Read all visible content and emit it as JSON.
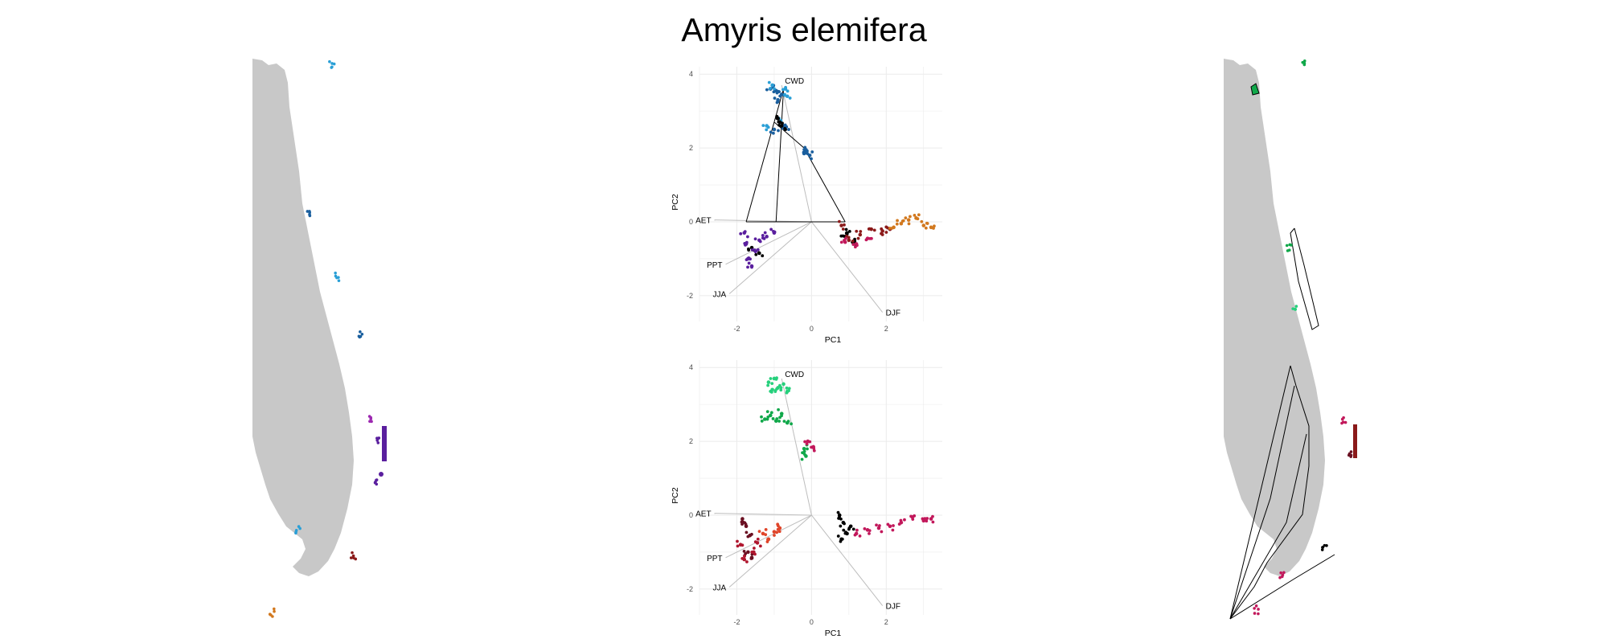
{
  "figure_title": "Amyris elemifera",
  "colors": {
    "land": "#c8c8c8",
    "grid": "#ebebeb",
    "vector": "#bdbdbd",
    "hull": "#000000"
  },
  "chart_data": [
    {
      "type": "scatter",
      "title": "",
      "xlabel": "PC1",
      "ylabel": "PC2",
      "xlim": [
        -3.0,
        3.5
      ],
      "ylim": [
        -2.7,
        4.2
      ],
      "xticks": [
        -2,
        0,
        2
      ],
      "yticks": [
        -2,
        0,
        2,
        4
      ],
      "xtick_labels": [
        "-2",
        "0",
        "2"
      ],
      "ytick_labels": [
        "-2",
        "0",
        "2",
        "4"
      ],
      "grid": true,
      "legend": "none",
      "vectors": [
        {
          "label": "CWD",
          "x": -0.8,
          "y": 3.7
        },
        {
          "label": "AET",
          "x": -2.6,
          "y": 0.05
        },
        {
          "label": "PPT",
          "x": -2.3,
          "y": -1.15
        },
        {
          "label": "JJA",
          "x": -2.2,
          "y": -1.95
        },
        {
          "label": "DJF",
          "x": 1.9,
          "y": -2.45
        }
      ],
      "hull_edges": [
        [
          -1.75,
          0.0
        ],
        [
          -1.0,
          2.7
        ],
        [
          -0.95,
          0.0
        ],
        [
          -0.75,
          3.6
        ],
        [
          -0.2,
          2.0
        ],
        [
          0.9,
          0.0
        ]
      ],
      "series": [
        {
          "color": "#1a5f9e",
          "x": [
            -1.1,
            -0.95,
            -0.9,
            -0.8,
            -0.75,
            -1.0,
            -0.7,
            -0.15,
            -0.05,
            -0.2
          ],
          "y": [
            3.6,
            3.55,
            3.3,
            3.45,
            2.6,
            2.5,
            2.55,
            1.95,
            1.8,
            1.85
          ]
        },
        {
          "color": "#2a9fd6",
          "x": [
            -1.05,
            -0.7,
            -0.65,
            -1.2,
            -0.85
          ],
          "y": [
            3.7,
            3.6,
            3.4,
            2.6,
            2.7
          ]
        },
        {
          "color": "#000000",
          "x": [
            -0.9,
            -0.85,
            -0.8,
            -1.6,
            -1.4,
            0.9,
            1.1,
            0.95
          ],
          "y": [
            2.8,
            2.7,
            2.6,
            -0.7,
            -0.85,
            -0.4,
            -0.55,
            -0.3
          ]
        },
        {
          "color": "#5a1f9e",
          "x": [
            -1.8,
            -1.75,
            -1.7,
            -1.6,
            -1.5,
            -1.4,
            -1.2,
            -1.0
          ],
          "y": [
            -0.3,
            -0.6,
            -1.0,
            -1.2,
            -0.8,
            -0.5,
            -0.4,
            -0.3
          ]
        },
        {
          "color": "#8b1a1a",
          "x": [
            0.8,
            1.0,
            1.3,
            1.6,
            1.9,
            2.1
          ],
          "y": [
            -0.1,
            -0.5,
            -0.35,
            -0.2,
            -0.25,
            -0.2
          ]
        },
        {
          "color": "#c2185b",
          "x": [
            0.9,
            1.2,
            1.5
          ],
          "y": [
            -0.55,
            -0.6,
            -0.45
          ]
        },
        {
          "color": "#d2781e",
          "x": [
            2.2,
            2.4,
            2.6,
            2.8,
            3.0,
            3.2
          ],
          "y": [
            -0.15,
            -0.05,
            0.05,
            0.1,
            -0.1,
            -0.15
          ]
        }
      ]
    },
    {
      "type": "scatter",
      "title": "",
      "xlabel": "PC1",
      "ylabel": "PC2",
      "xlim": [
        -3.0,
        3.5
      ],
      "ylim": [
        -2.7,
        4.2
      ],
      "xticks": [
        -2,
        0,
        2
      ],
      "yticks": [
        -2,
        0,
        2,
        4
      ],
      "xtick_labels": [
        "-2",
        "0",
        "2"
      ],
      "ytick_labels": [
        "-2",
        "0",
        "2",
        "4"
      ],
      "grid": true,
      "legend": "none",
      "vectors": [
        {
          "label": "CWD",
          "x": -0.8,
          "y": 3.7
        },
        {
          "label": "AET",
          "x": -2.6,
          "y": 0.05
        },
        {
          "label": "PPT",
          "x": -2.3,
          "y": -1.15
        },
        {
          "label": "JJA",
          "x": -2.2,
          "y": -1.95
        },
        {
          "label": "DJF",
          "x": 1.9,
          "y": -2.45
        }
      ],
      "series": [
        {
          "color": "#26d07c",
          "x": [
            -1.15,
            -1.0,
            -0.9,
            -0.75,
            -0.65,
            -1.05
          ],
          "y": [
            3.6,
            3.7,
            3.45,
            3.55,
            3.35,
            3.4
          ]
        },
        {
          "color": "#10a84a",
          "x": [
            -1.25,
            -1.1,
            -0.95,
            -0.8,
            -0.65,
            -0.2,
            -0.15
          ],
          "y": [
            2.6,
            2.7,
            2.55,
            2.75,
            2.5,
            1.8,
            1.6
          ]
        },
        {
          "color": "#c2185b",
          "x": [
            -0.1,
            0.05,
            1.2,
            1.5,
            1.8,
            2.1,
            2.4,
            2.7,
            3.0,
            3.2
          ],
          "y": [
            2.0,
            1.85,
            -0.5,
            -0.4,
            -0.35,
            -0.3,
            -0.2,
            -0.05,
            -0.15,
            -0.1
          ]
        },
        {
          "color": "#6a1022",
          "x": [
            -1.85,
            -1.75,
            -1.65,
            -1.7,
            -1.6
          ],
          "y": [
            -0.1,
            -0.3,
            -0.55,
            -1.0,
            -1.15
          ]
        },
        {
          "color": "#e0452a",
          "x": [
            -1.3,
            -1.15,
            -1.0,
            -0.85
          ],
          "y": [
            -0.5,
            -0.65,
            -0.45,
            -0.35
          ]
        },
        {
          "color": "#b0162e",
          "x": [
            -1.9,
            -1.8,
            -1.55,
            -1.45
          ],
          "y": [
            -0.8,
            -1.2,
            -1.0,
            -0.75
          ]
        },
        {
          "color": "#000000",
          "x": [
            0.75,
            0.85,
            0.95,
            1.05,
            0.8
          ],
          "y": [
            0.0,
            -0.2,
            -0.5,
            -0.3,
            -0.65
          ]
        }
      ]
    }
  ],
  "maps": [
    {
      "hull_color": "",
      "patches": [
        {
          "color": "#2a9fd6",
          "lon": -80.88,
          "lat": 32.0
        },
        {
          "color": "#1a5f9e",
          "lon": -81.25,
          "lat": 29.4
        },
        {
          "color": "#2a9fd6",
          "lon": -80.8,
          "lat": 28.3
        },
        {
          "color": "#1a5f9e",
          "lon": -80.45,
          "lat": 27.3
        },
        {
          "color": "#9c27b0",
          "lon": -80.3,
          "lat": 25.85
        },
        {
          "color": "#5a1f9e",
          "lon": -80.15,
          "lat": 25.45
        },
        {
          "color": "#5a1f9e",
          "lon": -80.2,
          "lat": 24.7
        },
        {
          "color": "#2a9fd6",
          "lon": -81.4,
          "lat": 23.9
        },
        {
          "color": "#8b1a1a",
          "lon": -80.55,
          "lat": 23.45
        },
        {
          "color": "#d2781e",
          "lon": -81.8,
          "lat": 22.45
        }
      ]
    },
    {
      "patches": [
        {
          "color": "#10a84a",
          "lon": -80.88,
          "lat": 32.0
        },
        {
          "color": "#10a84a",
          "lon": -81.1,
          "lat": 28.8
        },
        {
          "color": "#26d07c",
          "lon": -81.0,
          "lat": 27.8
        },
        {
          "color": "#c2185b",
          "lon": -80.25,
          "lat": 25.8
        },
        {
          "color": "#6a1022",
          "lon": -80.15,
          "lat": 25.2
        },
        {
          "color": "#000000",
          "lon": -80.55,
          "lat": 23.6
        },
        {
          "color": "#c2185b",
          "lon": -81.2,
          "lat": 23.1
        },
        {
          "color": "#c2185b",
          "lon": -81.6,
          "lat": 22.5
        }
      ]
    }
  ]
}
